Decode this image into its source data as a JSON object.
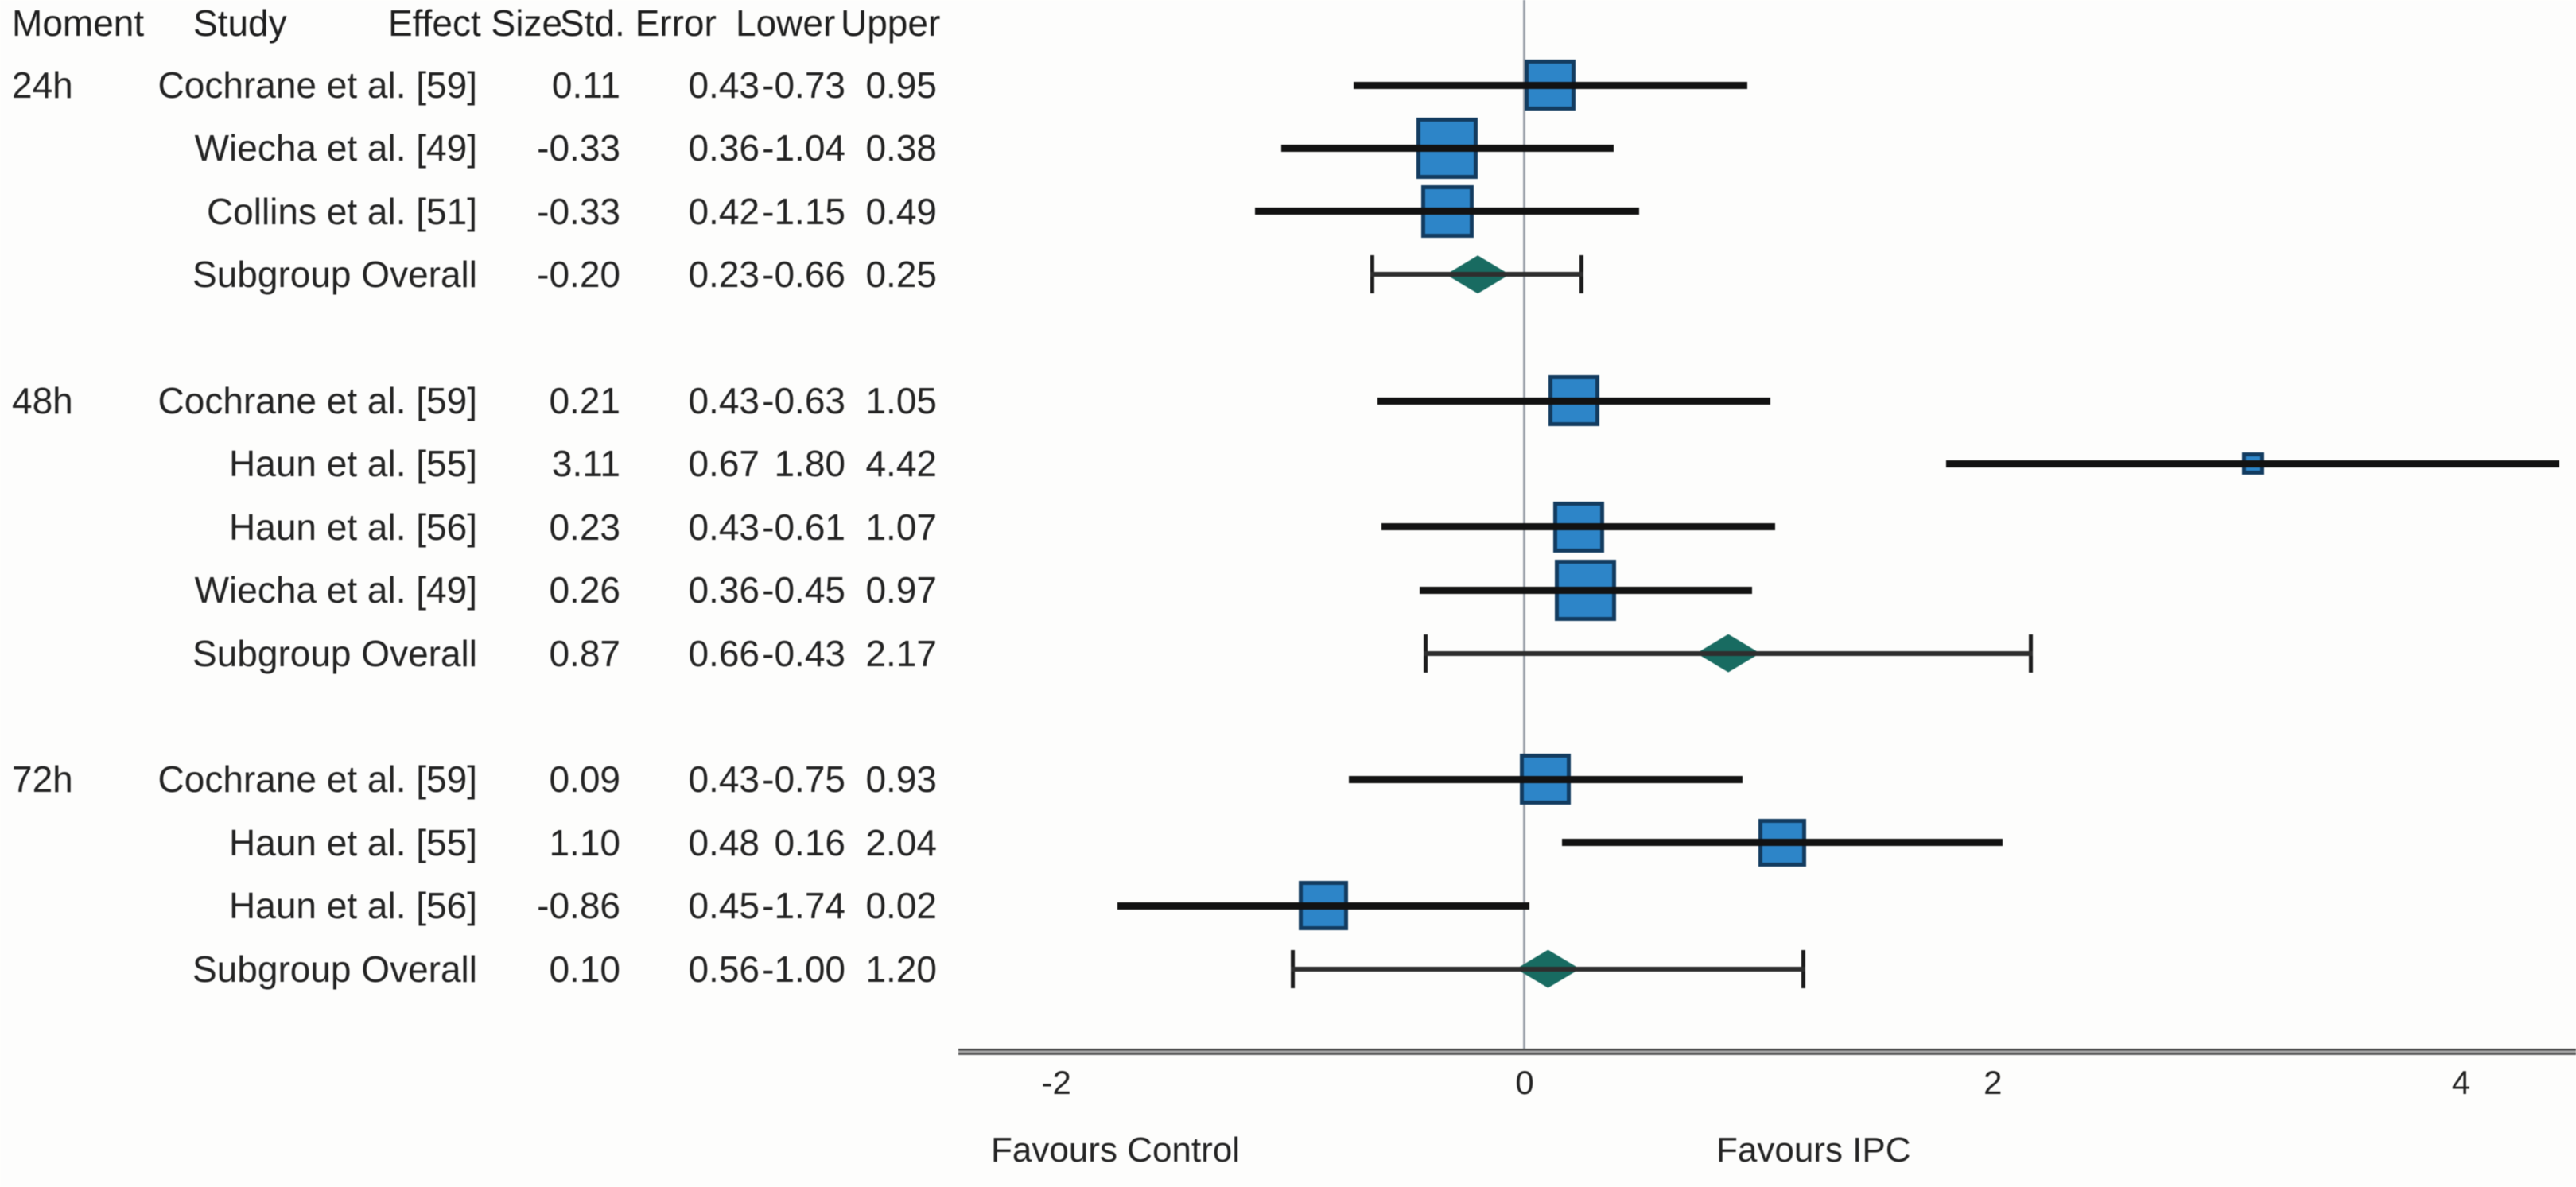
{
  "table": {
    "headers": [
      "Moment",
      "Study",
      "Effect Size",
      "Std. Error",
      "Lower",
      "Upper"
    ]
  },
  "chart_data": {
    "type": "forest",
    "title": "",
    "x_ticks": [
      "-2",
      "0",
      "2",
      "4"
    ],
    "xlim": [
      -2.42,
      4.49
    ],
    "zero_reference": 0,
    "grid": "off",
    "xlabel_left": "Favours Control",
    "xlabel_right": "Favours IPC",
    "groups": [
      {
        "moment": "24h",
        "rows": [
          {
            "study": "Cochrane et al. [59]",
            "effect": "0.11",
            "se": "0.43",
            "lower": "-0.73",
            "upper": "0.95",
            "kind": "study",
            "marker_px": 64
          },
          {
            "study": "Wiecha et al. [49]",
            "effect": "-0.33",
            "se": "0.36",
            "lower": "-1.04",
            "upper": "0.38",
            "kind": "study",
            "marker_px": 77
          },
          {
            "study": "Collins et al. [51]",
            "effect": "-0.33",
            "se": "0.42",
            "lower": "-1.15",
            "upper": "0.49",
            "kind": "study",
            "marker_px": 66
          },
          {
            "study": "Subgroup Overall",
            "effect": "-0.20",
            "se": "0.23",
            "lower": "-0.66",
            "upper": "0.25",
            "kind": "subgroup"
          }
        ]
      },
      {
        "moment": "48h",
        "rows": [
          {
            "study": "Cochrane et al. [59]",
            "effect": "0.21",
            "se": "0.43",
            "lower": "-0.63",
            "upper": "1.05",
            "kind": "study",
            "marker_px": 64
          },
          {
            "study": "Haun et al. [55]",
            "effect": "3.11",
            "se": "0.67",
            "lower": "1.80",
            "upper": "4.42",
            "kind": "study",
            "marker_px": 28
          },
          {
            "study": "Haun et al. [56]",
            "effect": "0.23",
            "se": "0.43",
            "lower": "-0.61",
            "upper": "1.07",
            "kind": "study",
            "marker_px": 64
          },
          {
            "study": "Wiecha et al. [49]",
            "effect": "0.26",
            "se": "0.36",
            "lower": "-0.45",
            "upper": "0.97",
            "kind": "study",
            "marker_px": 77
          },
          {
            "study": "Subgroup Overall",
            "effect": "0.87",
            "se": "0.66",
            "lower": "-0.43",
            "upper": "2.17",
            "kind": "subgroup"
          }
        ]
      },
      {
        "moment": "72h",
        "rows": [
          {
            "study": "Cochrane et al. [59]",
            "effect": "0.09",
            "se": "0.43",
            "lower": "-0.75",
            "upper": "0.93",
            "kind": "study",
            "marker_px": 64
          },
          {
            "study": "Haun et al. [55]",
            "effect": "1.10",
            "se": "0.48",
            "lower": "0.16",
            "upper": "2.04",
            "kind": "study",
            "marker_px": 60
          },
          {
            "study": "Haun et al. [56]",
            "effect": "-0.86",
            "se": "0.45",
            "lower": "-1.74",
            "upper": "0.02",
            "kind": "study",
            "marker_px": 62
          },
          {
            "study": "Subgroup Overall",
            "effect": "0.10",
            "se": "0.56",
            "lower": "-1.00",
            "upper": "1.20",
            "kind": "subgroup"
          }
        ]
      }
    ]
  },
  "colors": {
    "square_fill": "#2d85c8",
    "square_border": "#133c60",
    "diamond": "#186b61",
    "study_bar": "#121212",
    "pooled_bar": "#2e2e2e",
    "pooled_cap": "#1c1c1c",
    "zero_line": "#7d8591",
    "axis_line": "#6f6f6f",
    "text": "#232323"
  }
}
